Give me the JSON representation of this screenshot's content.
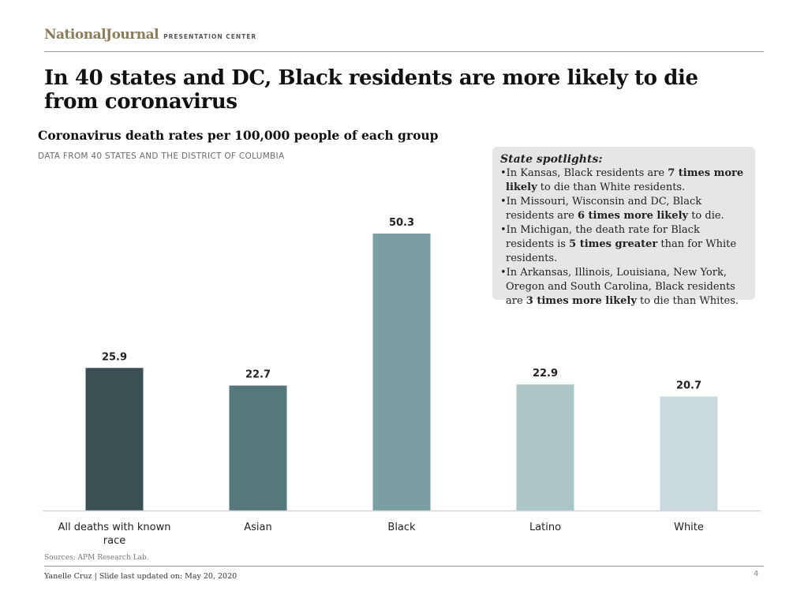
{
  "brand": {
    "logo": "NationalJournal",
    "sub": "PRESENTATION CENTER"
  },
  "slide": {
    "title": "In 40 states and DC, Black residents are more likely to die from coronavirus",
    "data_note": "DATA FROM 40 STATES AND THE DISTRICT OF COLUMBIA"
  },
  "spotlight": {
    "title": "State spotlights:",
    "items": [
      {
        "pre": "In Kansas, Black residents are ",
        "bold": "7 times more likely",
        "post": " to die than White residents."
      },
      {
        "pre": "In Missouri, Wisconsin and DC, Black residents are ",
        "bold": "6 times more likely",
        "post": " to die."
      },
      {
        "pre": "In Michigan, the death rate for Black residents is ",
        "bold": "5 times greater",
        "post": " than for White residents."
      },
      {
        "pre": "In Arkansas, Illinois, Louisiana, New York, Oregon and South Carolina, Black residents are ",
        "bold": "3 times more likely",
        "post": " to die than Whites."
      }
    ]
  },
  "footer": {
    "sources": "Sources: APM Research Lab.",
    "credit": "Yanelle Cruz | Slide last updated on: May 20, 2020",
    "page": "4"
  },
  "chart_data": {
    "type": "bar",
    "title": "Coronavirus death rates per 100,000 people of each group",
    "categories": [
      "All deaths with known race",
      "Asian",
      "Black",
      "Latino",
      "White"
    ],
    "values": [
      25.9,
      22.7,
      50.3,
      22.9,
      20.7
    ],
    "value_labels": [
      "25.9",
      "22.7",
      "50.3",
      "22.9",
      "20.7"
    ],
    "colors": [
      "#3a5052",
      "#57787a",
      "#7a9fa2",
      "#abc4c6",
      "#c9d9db"
    ],
    "xlabel": "",
    "ylabel": "",
    "ylim": [
      0,
      50.3
    ],
    "grid": false,
    "legend": "none"
  }
}
